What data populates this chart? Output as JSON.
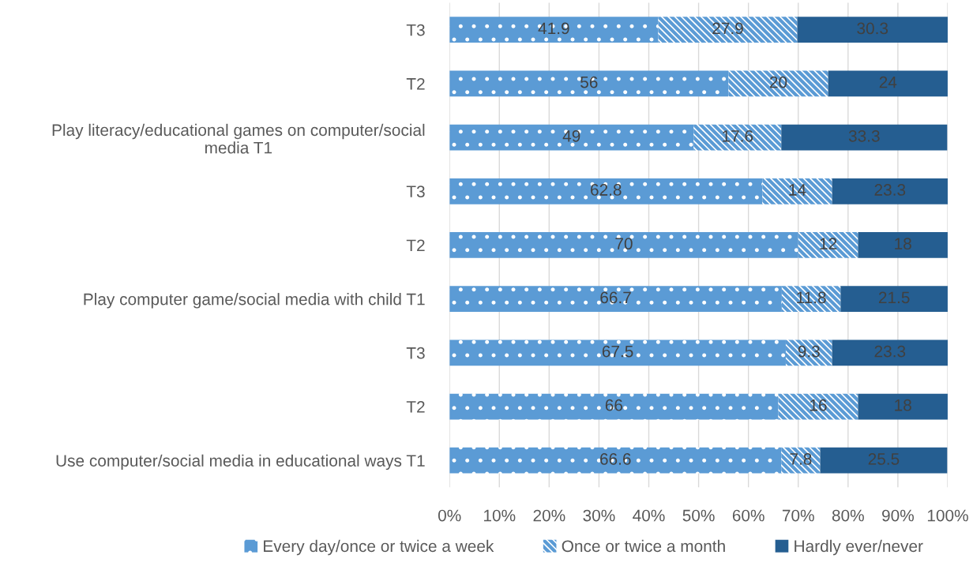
{
  "chart_data": {
    "type": "bar",
    "orientation": "horizontal",
    "stacked": true,
    "categories": [
      "T3",
      "T2",
      "Play literacy/educational games on computer/social\nmedia T1",
      "T3",
      "T2",
      "Play computer game/social media with child T1",
      "T3",
      "T2",
      "Use computer/social media in educational ways T1"
    ],
    "series": [
      {
        "name": "Every day/once or twice a week",
        "color": "#5b9bd5",
        "values": [
          41.9,
          56,
          49,
          62.8,
          70,
          66.7,
          67.5,
          66,
          66.6
        ]
      },
      {
        "name": "Once or twice a month",
        "color": "#5b9bd5",
        "values": [
          27.9,
          20,
          17.6,
          14,
          12,
          11.8,
          9.3,
          16,
          7.8
        ]
      },
      {
        "name": "Hardly ever/never",
        "color": "#255e91",
        "values": [
          30.3,
          24,
          33.3,
          23.3,
          18,
          21.5,
          23.3,
          18,
          25.5
        ]
      }
    ],
    "xlim": [
      0,
      100
    ],
    "xticks": [
      {
        "value": 0,
        "label": "0%"
      },
      {
        "value": 10,
        "label": "10%"
      },
      {
        "value": 20,
        "label": "20%"
      },
      {
        "value": 30,
        "label": "30%"
      },
      {
        "value": 40,
        "label": "40%"
      },
      {
        "value": 50,
        "label": "50%"
      },
      {
        "value": 60,
        "label": "60%"
      },
      {
        "value": 70,
        "label": "70%"
      },
      {
        "value": 80,
        "label": "80%"
      },
      {
        "value": 90,
        "label": "90%"
      },
      {
        "value": 100,
        "label": "100%"
      }
    ],
    "grid": "x",
    "legend": "bottom",
    "data_labels": true
  }
}
